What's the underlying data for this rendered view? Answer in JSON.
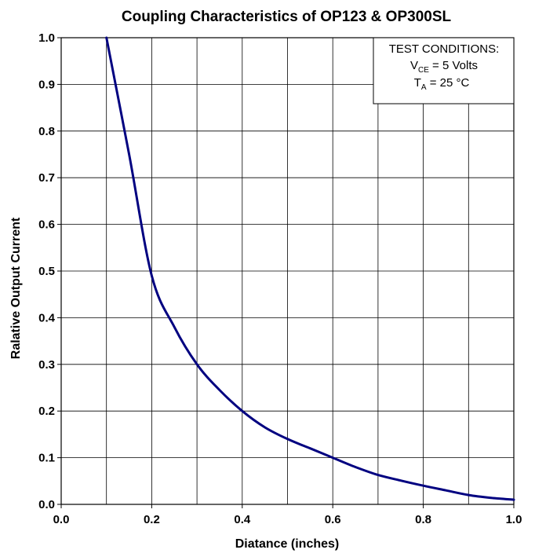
{
  "chart_data": {
    "type": "line",
    "title": "Coupling Characteristics of OP123 & OP300SL",
    "xlabel": "Diatance (inches)",
    "ylabel": "Ralative Output Current",
    "xlim": [
      0.0,
      1.0
    ],
    "ylim": [
      0.0,
      1.0
    ],
    "x_ticks": [
      "0.0",
      "0.2",
      "0.4",
      "0.6",
      "0.8",
      "1.0"
    ],
    "y_ticks": [
      "0.0",
      "0.1",
      "0.2",
      "0.3",
      "0.4",
      "0.5",
      "0.6",
      "0.7",
      "0.8",
      "0.9",
      "1.0"
    ],
    "x_tick_values": [
      0.0,
      0.2,
      0.4,
      0.6,
      0.8,
      1.0
    ],
    "y_tick_values": [
      0.0,
      0.1,
      0.2,
      0.3,
      0.4,
      0.5,
      0.6,
      0.7,
      0.8,
      0.9,
      1.0
    ],
    "x_grid_values": [
      0.1,
      0.2,
      0.3,
      0.4,
      0.5,
      0.6,
      0.7,
      0.8,
      0.9
    ],
    "grid": true,
    "series": [
      {
        "color": "#000080",
        "x": [
          0.1,
          0.15,
          0.2,
          0.25,
          0.3,
          0.35,
          0.4,
          0.45,
          0.5,
          0.55,
          0.6,
          0.65,
          0.7,
          0.75,
          0.8,
          0.85,
          0.9,
          0.95,
          1.0
        ],
        "y": [
          1.0,
          0.75,
          0.49,
          0.38,
          0.3,
          0.245,
          0.2,
          0.165,
          0.14,
          0.12,
          0.1,
          0.08,
          0.063,
          0.051,
          0.04,
          0.03,
          0.02,
          0.014,
          0.01
        ]
      }
    ],
    "legend": {
      "placement": "top-right",
      "heading": "TEST CONDITIONS:",
      "line1_var": "V",
      "line1_sub": "CE",
      "line1_rest": " = 5 Volts",
      "line2_var": "T",
      "line2_sub": "A",
      "line2_rest": " =  25 °C"
    }
  }
}
